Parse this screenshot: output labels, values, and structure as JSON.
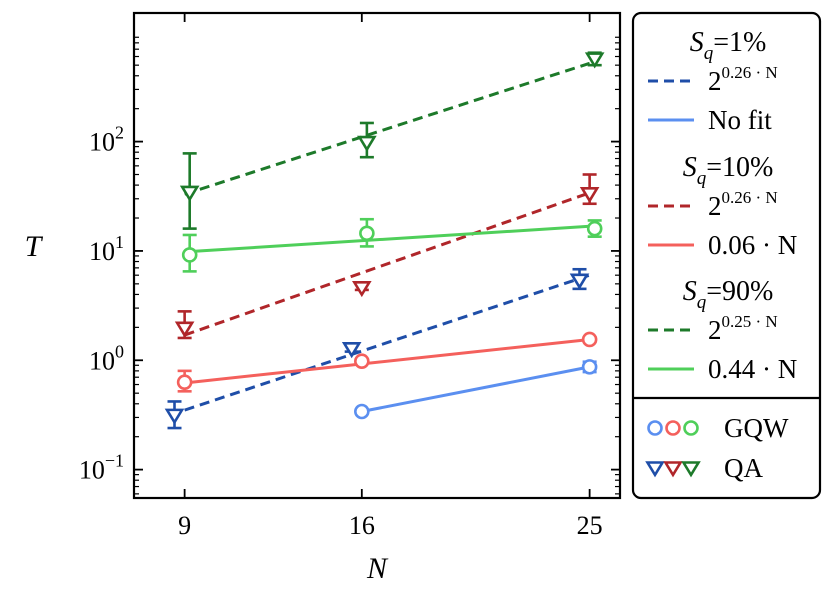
{
  "chart_data": {
    "type": "scatter",
    "xlabel": "N",
    "ylabel": "T",
    "yscale": "log",
    "xlim": [
      7.0,
      26.2
    ],
    "ylim": [
      0.055,
      1500
    ],
    "x_ticks": [
      9,
      16,
      25
    ],
    "x_tick_labels": [
      "9",
      "16",
      "25"
    ],
    "y_ticks": [
      0.1,
      1,
      10,
      100
    ],
    "y_tick_labels": [
      {
        "base": "10",
        "exp": "−1"
      },
      {
        "base": "10",
        "exp": "0"
      },
      {
        "base": "10",
        "exp": "1"
      },
      {
        "base": "10",
        "exp": "2"
      }
    ],
    "colors": {
      "sq1_qa": "#1f4ea8",
      "sq1_gqw": "#5b8ff0",
      "sq10_qa": "#b0262a",
      "sq10_gqw": "#f4605c",
      "sq90_qa": "#1d7a2a",
      "sq90_gqw": "#4fcf5a"
    },
    "series": [
      {
        "name": "QA, S_q = 1%",
        "method": "QA",
        "group": "1%",
        "color_key": "sq1_qa",
        "marker": "triangle-down",
        "offset": -0.4,
        "points": [
          {
            "x": 9,
            "y": 0.32,
            "lo": 0.24,
            "hi": 0.42
          },
          {
            "x": 16,
            "y": 1.3,
            "lo": 1.2,
            "hi": 1.42
          },
          {
            "x": 25,
            "y": 5.5,
            "lo": 4.5,
            "hi": 6.8
          }
        ]
      },
      {
        "name": "GQW, S_q = 1%",
        "method": "GQW",
        "group": "1%",
        "color_key": "sq1_gqw",
        "marker": "circle",
        "offset": 0,
        "points": [
          {
            "x": 16,
            "y": 0.34,
            "lo": 0.33,
            "hi": 0.35
          },
          {
            "x": 25,
            "y": 0.87,
            "lo": 0.78,
            "hi": 0.97
          }
        ]
      },
      {
        "name": "QA, S_q = 10%",
        "method": "QA",
        "group": "10%",
        "color_key": "sq10_qa",
        "marker": "triangle-down",
        "offset": 0,
        "points": [
          {
            "x": 9,
            "y": 2.0,
            "lo": 1.6,
            "hi": 2.8
          },
          {
            "x": 16,
            "y": 4.7,
            "lo": 4.4,
            "hi": 5.1
          },
          {
            "x": 25,
            "y": 34,
            "lo": 27,
            "hi": 50
          }
        ]
      },
      {
        "name": "GQW, S_q = 10%",
        "method": "GQW",
        "group": "10%",
        "color_key": "sq10_gqw",
        "marker": "circle",
        "offset": 0,
        "points": [
          {
            "x": 9,
            "y": 0.63,
            "lo": 0.52,
            "hi": 0.8
          },
          {
            "x": 16,
            "y": 0.98,
            "lo": 0.94,
            "hi": 1.02
          },
          {
            "x": 25,
            "y": 1.55,
            "lo": 1.48,
            "hi": 1.62
          }
        ]
      },
      {
        "name": "QA, S_q = 90%",
        "method": "QA",
        "group": "90%",
        "color_key": "sq90_qa",
        "marker": "triangle-down",
        "offset": 0.2,
        "points": [
          {
            "x": 9,
            "y": 35,
            "lo": 16,
            "hi": 78
          },
          {
            "x": 16,
            "y": 100,
            "lo": 72,
            "hi": 148
          },
          {
            "x": 25,
            "y": 580,
            "lo": 500,
            "hi": 650
          }
        ]
      },
      {
        "name": "GQW, S_q = 90%",
        "method": "GQW",
        "group": "90%",
        "color_key": "sq90_gqw",
        "marker": "circle",
        "offset": 0.2,
        "points": [
          {
            "x": 9,
            "y": 9.2,
            "lo": 6.5,
            "hi": 14
          },
          {
            "x": 16,
            "y": 14.5,
            "lo": 11,
            "hi": 19.5
          },
          {
            "x": 25,
            "y": 16,
            "lo": 13.5,
            "hi": 19
          }
        ]
      }
    ],
    "fits": [
      {
        "name": "fit QA 1%",
        "color_key": "sq1_qa",
        "style": "dashed",
        "x": [
          9,
          25
        ],
        "y": [
          0.35,
          6.0
        ]
      },
      {
        "name": "fit GQW 1%",
        "color_key": "sq1_gqw",
        "style": "solid",
        "x": [
          16,
          25
        ],
        "y": [
          0.34,
          0.87
        ]
      },
      {
        "name": "fit QA 10%",
        "color_key": "sq10_qa",
        "style": "dashed",
        "x": [
          9,
          25
        ],
        "y": [
          1.7,
          34
        ]
      },
      {
        "name": "fit GQW 10%",
        "color_key": "sq10_gqw",
        "style": "solid",
        "x": [
          9,
          25
        ],
        "y": [
          0.62,
          1.55
        ]
      },
      {
        "name": "fit QA 90%",
        "color_key": "sq90_qa",
        "style": "dashed",
        "x": [
          9,
          25
        ],
        "y": [
          33,
          520
        ]
      },
      {
        "name": "fit GQW 90%",
        "color_key": "sq90_gqw",
        "style": "solid",
        "x": [
          9,
          25
        ],
        "y": [
          9.8,
          16.8
        ]
      }
    ],
    "legend": {
      "placement": "right of plot",
      "groups": [
        {
          "title_var": "S",
          "title_sub": "q",
          "title_eq": "=1%",
          "entries": [
            {
              "style": "dashed",
              "color_key": "sq1_qa",
              "label_base": "2",
              "label_exp": "0.26 · N",
              "label_text": ""
            },
            {
              "style": "solid",
              "color_key": "sq1_gqw",
              "label_base": "",
              "label_exp": "",
              "label_text": "No fit"
            }
          ]
        },
        {
          "title_var": "S",
          "title_sub": "q",
          "title_eq": "=10%",
          "entries": [
            {
              "style": "dashed",
              "color_key": "sq10_qa",
              "label_base": "2",
              "label_exp": "0.26 · N",
              "label_text": ""
            },
            {
              "style": "solid",
              "color_key": "sq10_gqw",
              "label_base": "",
              "label_exp": "",
              "label_text": "0.06 · N"
            }
          ]
        },
        {
          "title_var": "S",
          "title_sub": "q",
          "title_eq": "=90%",
          "entries": [
            {
              "style": "dashed",
              "color_key": "sq90_qa",
              "label_base": "2",
              "label_exp": "0.25 · N",
              "label_text": ""
            },
            {
              "style": "solid",
              "color_key": "sq90_gqw",
              "label_base": "",
              "label_exp": "",
              "label_text": "0.44 · N"
            }
          ]
        }
      ],
      "marker_entries": [
        {
          "marker": "circle",
          "color_keys": [
            "sq1_gqw",
            "sq10_gqw",
            "sq90_gqw"
          ],
          "label": "GQW"
        },
        {
          "marker": "triangle-down",
          "color_keys": [
            "sq1_qa",
            "sq10_qa",
            "sq90_qa"
          ],
          "label": "QA"
        }
      ]
    }
  }
}
